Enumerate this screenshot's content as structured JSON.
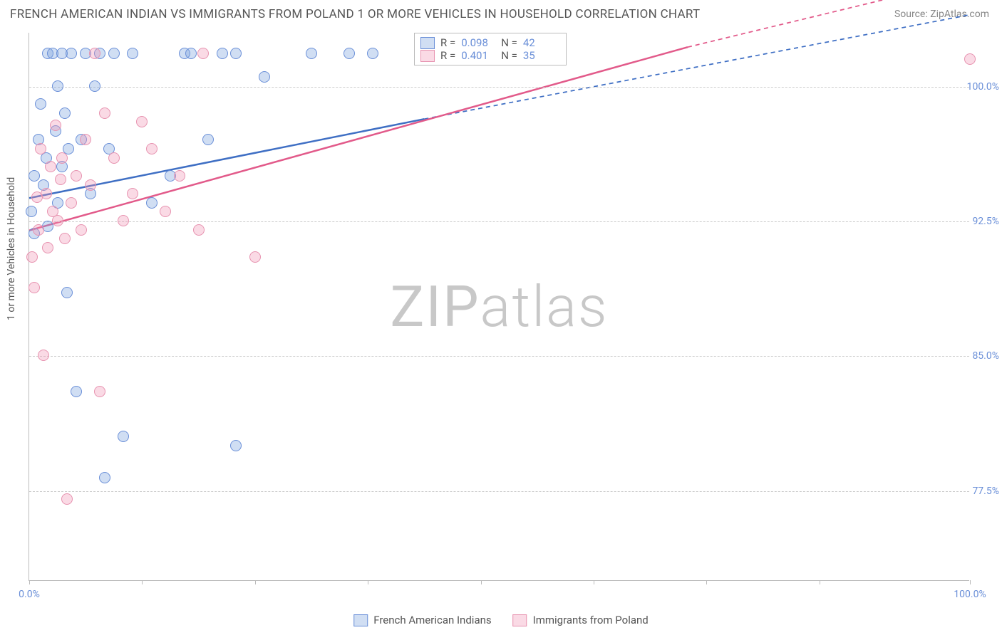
{
  "title": "FRENCH AMERICAN INDIAN VS IMMIGRANTS FROM POLAND 1 OR MORE VEHICLES IN HOUSEHOLD CORRELATION CHART",
  "source": "Source: ZipAtlas.com",
  "y_axis_label": "1 or more Vehicles in Household",
  "watermark_bold": "ZIP",
  "watermark_thin": "atlas",
  "chart": {
    "type": "scatter",
    "xlim": [
      0,
      100
    ],
    "ylim": [
      72.5,
      103.0
    ],
    "y_ticks": [
      77.5,
      85.0,
      92.5,
      100.0
    ],
    "y_tick_labels": [
      "77.5%",
      "85.0%",
      "92.5%",
      "100.0%"
    ],
    "x_ticks": [
      0,
      12,
      24,
      36,
      48,
      60,
      72,
      84,
      100
    ],
    "x_tick_labels": {
      "0": "0.0%",
      "100": "100.0%"
    },
    "grid_color": "#cccccc",
    "border_color": "#bbbbbb",
    "background_color": "#ffffff"
  },
  "series": [
    {
      "name": "French American Indians",
      "fill": "rgba(120,160,220,0.35)",
      "stroke": "#6a8fd8",
      "r_value": "0.098",
      "n_value": "42",
      "marker_radius": 8,
      "trendline": {
        "x1": 0,
        "y1": 93.8,
        "x2": 42,
        "y2": 98.2,
        "dash_x2": 100,
        "dash_y2": 104.0,
        "color": "#3f6fc4",
        "width": 2.5
      },
      "points": [
        [
          0.2,
          93.0
        ],
        [
          0.5,
          91.8
        ],
        [
          0.5,
          95.0
        ],
        [
          1.0,
          97.0
        ],
        [
          1.2,
          99.0
        ],
        [
          1.5,
          94.5
        ],
        [
          1.8,
          96.0
        ],
        [
          2.0,
          101.8
        ],
        [
          2.0,
          92.2
        ],
        [
          2.5,
          101.8
        ],
        [
          2.8,
          97.5
        ],
        [
          3.0,
          100.0
        ],
        [
          3.0,
          93.5
        ],
        [
          3.5,
          101.8
        ],
        [
          3.5,
          95.5
        ],
        [
          3.8,
          98.5
        ],
        [
          4.0,
          88.5
        ],
        [
          4.2,
          96.5
        ],
        [
          4.5,
          101.8
        ],
        [
          5.0,
          83.0
        ],
        [
          5.5,
          97.0
        ],
        [
          6.0,
          101.8
        ],
        [
          6.5,
          94.0
        ],
        [
          7.0,
          100.0
        ],
        [
          7.5,
          101.8
        ],
        [
          8.0,
          78.2
        ],
        [
          8.5,
          96.5
        ],
        [
          9.0,
          101.8
        ],
        [
          10.0,
          80.5
        ],
        [
          11.0,
          101.8
        ],
        [
          13.0,
          93.5
        ],
        [
          15.0,
          95.0
        ],
        [
          16.5,
          101.8
        ],
        [
          17.2,
          101.8
        ],
        [
          19.0,
          97.0
        ],
        [
          20.5,
          101.8
        ],
        [
          22.0,
          101.8
        ],
        [
          22.0,
          80.0
        ],
        [
          25.0,
          100.5
        ],
        [
          30.0,
          101.8
        ],
        [
          34.0,
          101.8
        ],
        [
          36.5,
          101.8
        ]
      ]
    },
    {
      "name": "Immigrants from Poland",
      "fill": "rgba(240,150,180,0.35)",
      "stroke": "#e793b0",
      "r_value": "0.401",
      "n_value": "35",
      "marker_radius": 8,
      "trendline": {
        "x1": 0,
        "y1": 92.0,
        "x2": 70,
        "y2": 102.2,
        "dash_x2": 100,
        "dash_y2": 106.0,
        "color": "#e25a8a",
        "width": 2.5
      },
      "points": [
        [
          0.3,
          90.5
        ],
        [
          0.5,
          88.8
        ],
        [
          0.8,
          93.8
        ],
        [
          1.0,
          92.0
        ],
        [
          1.2,
          96.5
        ],
        [
          1.5,
          85.0
        ],
        [
          1.8,
          94.0
        ],
        [
          2.0,
          91.0
        ],
        [
          2.3,
          95.5
        ],
        [
          2.5,
          93.0
        ],
        [
          2.8,
          97.8
        ],
        [
          3.0,
          92.5
        ],
        [
          3.3,
          94.8
        ],
        [
          3.5,
          96.0
        ],
        [
          3.8,
          91.5
        ],
        [
          4.0,
          77.0
        ],
        [
          4.5,
          93.5
        ],
        [
          5.0,
          95.0
        ],
        [
          5.5,
          92.0
        ],
        [
          6.0,
          97.0
        ],
        [
          6.5,
          94.5
        ],
        [
          7.0,
          101.8
        ],
        [
          7.5,
          83.0
        ],
        [
          8.0,
          98.5
        ],
        [
          9.0,
          96.0
        ],
        [
          10.0,
          92.5
        ],
        [
          11.0,
          94.0
        ],
        [
          12.0,
          98.0
        ],
        [
          13.0,
          96.5
        ],
        [
          14.5,
          93.0
        ],
        [
          16.0,
          95.0
        ],
        [
          18.0,
          92.0
        ],
        [
          18.5,
          101.8
        ],
        [
          24.0,
          90.5
        ],
        [
          100.0,
          101.5
        ]
      ]
    }
  ],
  "legend": {
    "series1_label": "French American Indians",
    "series2_label": "Immigrants from Poland"
  },
  "stats_labels": {
    "r_prefix": "R =",
    "n_prefix": "N ="
  }
}
